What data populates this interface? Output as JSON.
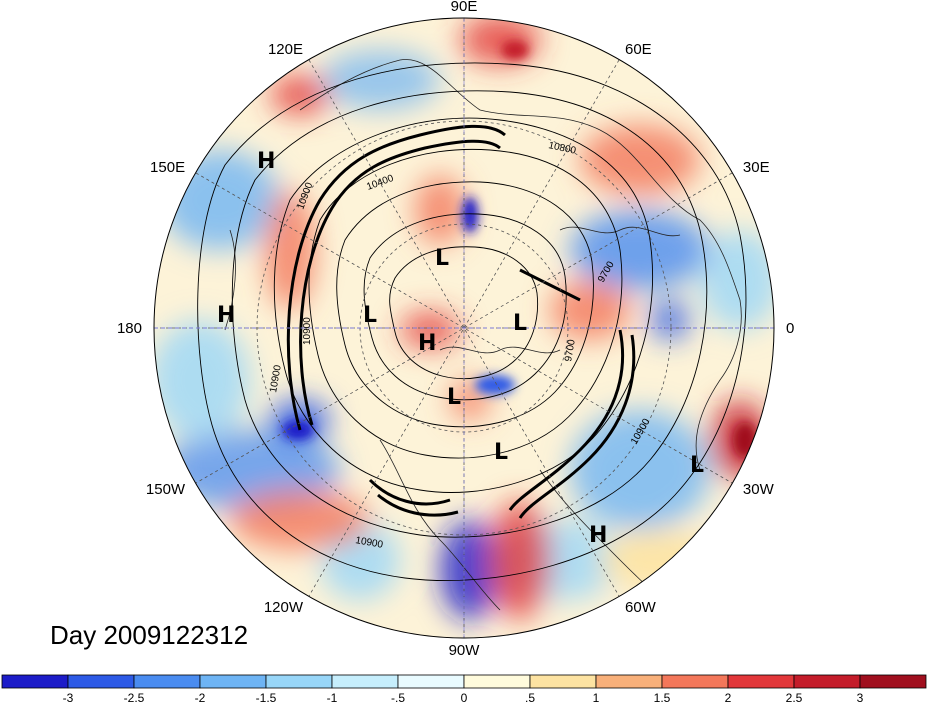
{
  "title": "Day 2009122312",
  "lon_labels": [
    {
      "text": "90E",
      "lon": 90
    },
    {
      "text": "60E",
      "lon": 60
    },
    {
      "text": "30E",
      "lon": 30
    },
    {
      "text": "0",
      "lon": 0
    },
    {
      "text": "30W",
      "lon": -30
    },
    {
      "text": "60W",
      "lon": -60
    },
    {
      "text": "90W",
      "lon": -90
    },
    {
      "text": "120W",
      "lon": -120
    },
    {
      "text": "150W",
      "lon": -150
    },
    {
      "text": "180",
      "lon": 180
    },
    {
      "text": "150E",
      "lon": 150
    },
    {
      "text": "120E",
      "lon": 120
    }
  ],
  "pressure_centers": [
    {
      "text": "H",
      "kind": "high"
    },
    {
      "text": "H",
      "kind": "high"
    },
    {
      "text": "H",
      "kind": "high"
    },
    {
      "text": "H",
      "kind": "high"
    },
    {
      "text": "L",
      "kind": "low"
    },
    {
      "text": "L",
      "kind": "low"
    },
    {
      "text": "L",
      "kind": "low"
    },
    {
      "text": "L",
      "kind": "low"
    },
    {
      "text": "L",
      "kind": "low"
    },
    {
      "text": "L",
      "kind": "low"
    }
  ],
  "contour_labels": [
    "10800",
    "10400",
    "9700",
    "9700",
    "10900",
    "10900",
    "10900",
    "10900",
    "10900"
  ],
  "colorbar": {
    "labels": [
      "-3",
      "-2.5",
      "-2",
      "-1.5",
      "-1",
      "-.5",
      "0",
      ".5",
      "1",
      "1.5",
      "2",
      "2.5",
      "3"
    ],
    "colors": [
      "#1c1cc8",
      "#2d5ae6",
      "#4a8cf0",
      "#6eb4f4",
      "#98d6f8",
      "#c6eefc",
      "#e9fbff",
      "#fffbdc",
      "#fde3a2",
      "#f8b07a",
      "#f3775a",
      "#e2373a",
      "#c41c2a",
      "#a00f1e"
    ]
  }
}
